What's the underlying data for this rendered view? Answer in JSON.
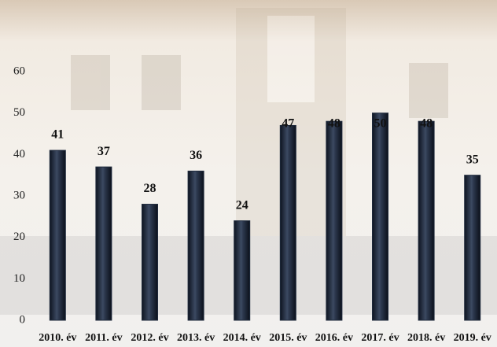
{
  "chart_data": {
    "type": "bar",
    "categories": [
      "2010. év",
      "2011. év",
      "2012. év",
      "2013. év",
      "2014. év",
      "2015. év",
      "2016. év",
      "2017. év",
      "2018. év",
      "2019. év"
    ],
    "values": [
      41,
      37,
      28,
      36,
      24,
      47,
      48,
      50,
      48,
      35
    ],
    "color": "#1f2a3c",
    "ylim": [
      0,
      60
    ],
    "yticks": [
      0,
      10,
      20,
      30,
      40,
      50,
      60
    ],
    "grid": false
  }
}
